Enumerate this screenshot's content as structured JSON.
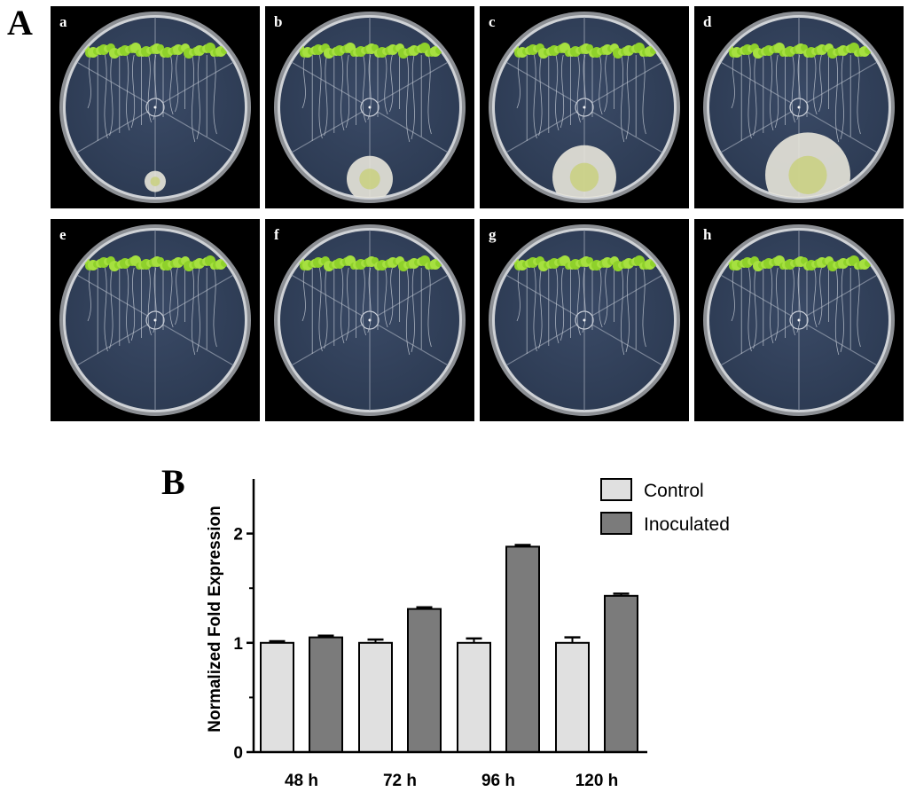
{
  "figure": {
    "panel_a_letter": "A",
    "panel_b_letter": "B"
  },
  "panel_a": {
    "plates": [
      {
        "label": "a",
        "fungal_colony": "small"
      },
      {
        "label": "b",
        "fungal_colony": "medium"
      },
      {
        "label": "c",
        "fungal_colony": "large"
      },
      {
        "label": "d",
        "fungal_colony": "very large"
      },
      {
        "label": "e",
        "fungal_colony": "none"
      },
      {
        "label": "f",
        "fungal_colony": "none"
      },
      {
        "label": "g",
        "fungal_colony": "none"
      },
      {
        "label": "h",
        "fungal_colony": "none"
      }
    ],
    "colors": {
      "background": "#000000",
      "agar": "#2c3a52",
      "seedlings": "#8fd12b",
      "fungus": "#e8e6da"
    }
  },
  "chart_data": {
    "type": "bar",
    "categories": [
      "48 h",
      "72 h",
      "96 h",
      "120 h"
    ],
    "series": [
      {
        "name": "Control",
        "values": [
          1.0,
          1.0,
          1.0,
          1.0
        ],
        "errors": [
          0.015,
          0.03,
          0.04,
          0.05
        ],
        "color": "#e0e0e0"
      },
      {
        "name": "Inoculated",
        "values": [
          1.05,
          1.31,
          1.88,
          1.43
        ],
        "errors": [
          0.015,
          0.015,
          0.015,
          0.02
        ],
        "color": "#7b7b7b"
      }
    ],
    "title": "",
    "xlabel": "",
    "ylabel": "Normalized Fold Expression",
    "ylim": [
      0,
      2.5
    ],
    "yticks": [
      0,
      1,
      2
    ],
    "ytick_labels": [
      "0",
      "1",
      "2"
    ],
    "legend_position": "top-right",
    "grid": false
  }
}
